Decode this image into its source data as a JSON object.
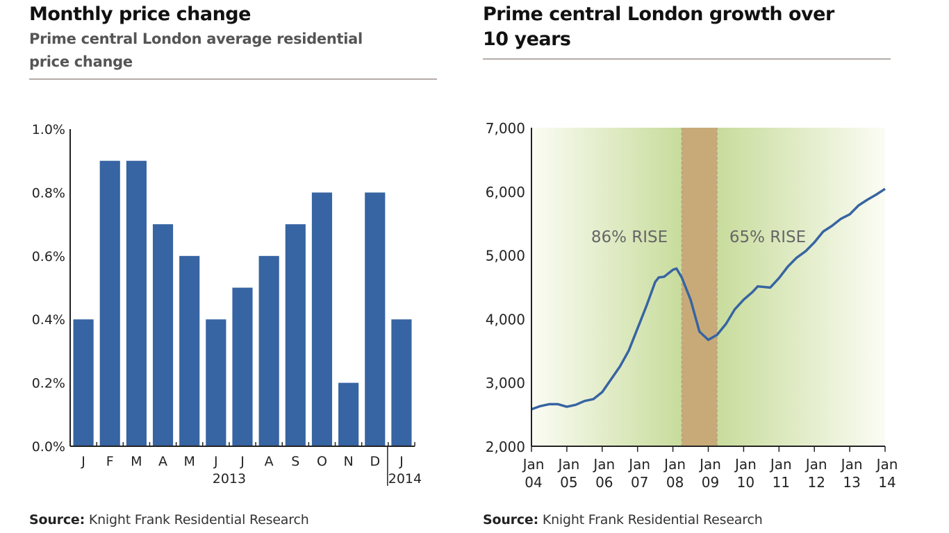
{
  "left": {
    "title": "Monthly price change",
    "subtitle_line1": "Prime central London average residential",
    "subtitle_line2": "price change",
    "source_label": "Source:",
    "source_text": "Knight Frank Residential Research"
  },
  "right": {
    "title_line1": "Prime central London growth over",
    "title_line2": "10 years",
    "source_label": "Source:",
    "source_text": "Knight Frank Residential Research"
  },
  "chart_data": [
    {
      "type": "bar",
      "categories": [
        "J",
        "F",
        "M",
        "A",
        "M",
        "J",
        "J",
        "A",
        "S",
        "O",
        "N",
        "D",
        "J"
      ],
      "year_labels": [
        "2013",
        "2014"
      ],
      "values": [
        0.4,
        0.9,
        0.9,
        0.7,
        0.6,
        0.4,
        0.5,
        0.6,
        0.7,
        0.8,
        0.2,
        0.8,
        0.4
      ],
      "ylim": [
        0,
        1.0
      ],
      "yticks": [
        0,
        0.2,
        0.4,
        0.6,
        0.8,
        1.0
      ],
      "ytick_labels": [
        "0.0%",
        "0.2%",
        "0.4%",
        "0.6%",
        "0.8%",
        "1.0%"
      ],
      "bar_color": "#3764a2",
      "grid": false
    },
    {
      "type": "line",
      "x": [
        2004.0,
        2004.25,
        2004.5,
        2004.75,
        2005.0,
        2005.25,
        2005.5,
        2005.75,
        2006.0,
        2006.25,
        2006.5,
        2006.75,
        2007.0,
        2007.25,
        2007.5,
        2007.6,
        2007.75,
        2008.0,
        2008.1,
        2008.25,
        2008.5,
        2008.75,
        2009.0,
        2009.25,
        2009.5,
        2009.75,
        2010.0,
        2010.25,
        2010.4,
        2010.75,
        2011.0,
        2011.25,
        2011.5,
        2011.75,
        2012.0,
        2012.25,
        2012.5,
        2012.75,
        2013.0,
        2013.25,
        2013.5,
        2013.75,
        2014.0
      ],
      "values": [
        2580,
        2630,
        2660,
        2660,
        2620,
        2650,
        2710,
        2740,
        2850,
        3050,
        3250,
        3500,
        3850,
        4200,
        4580,
        4650,
        4660,
        4770,
        4790,
        4650,
        4300,
        3800,
        3670,
        3750,
        3920,
        4150,
        4300,
        4420,
        4510,
        4490,
        4640,
        4820,
        4960,
        5060,
        5200,
        5370,
        5460,
        5570,
        5640,
        5780,
        5870,
        5950,
        6040
      ],
      "xlim": [
        2004,
        2014
      ],
      "ylim": [
        2000,
        7000
      ],
      "yticks": [
        2000,
        3000,
        4000,
        5000,
        6000,
        7000
      ],
      "ytick_labels": [
        "2,000",
        "3,000",
        "4,000",
        "5,000",
        "6,000",
        "7,000"
      ],
      "xtick_labels": [
        [
          "Jan",
          "04"
        ],
        [
          "Jan",
          "05"
        ],
        [
          "Jan",
          "06"
        ],
        [
          "Jan",
          "07"
        ],
        [
          "Jan",
          "08"
        ],
        [
          "Jan",
          "09"
        ],
        [
          "Jan",
          "10"
        ],
        [
          "Jan",
          "11"
        ],
        [
          "Jan",
          "12"
        ],
        [
          "Jan",
          "13"
        ],
        [
          "Jan",
          "14"
        ]
      ],
      "line_color": "#3764a2",
      "shaded_band": {
        "x_start": 2008.25,
        "x_end": 2009.25,
        "color": "#c8aa78"
      },
      "background_green": "#c8dc9c",
      "annotations": [
        "86% RISE",
        "65% RISE"
      ],
      "grid": false
    }
  ]
}
